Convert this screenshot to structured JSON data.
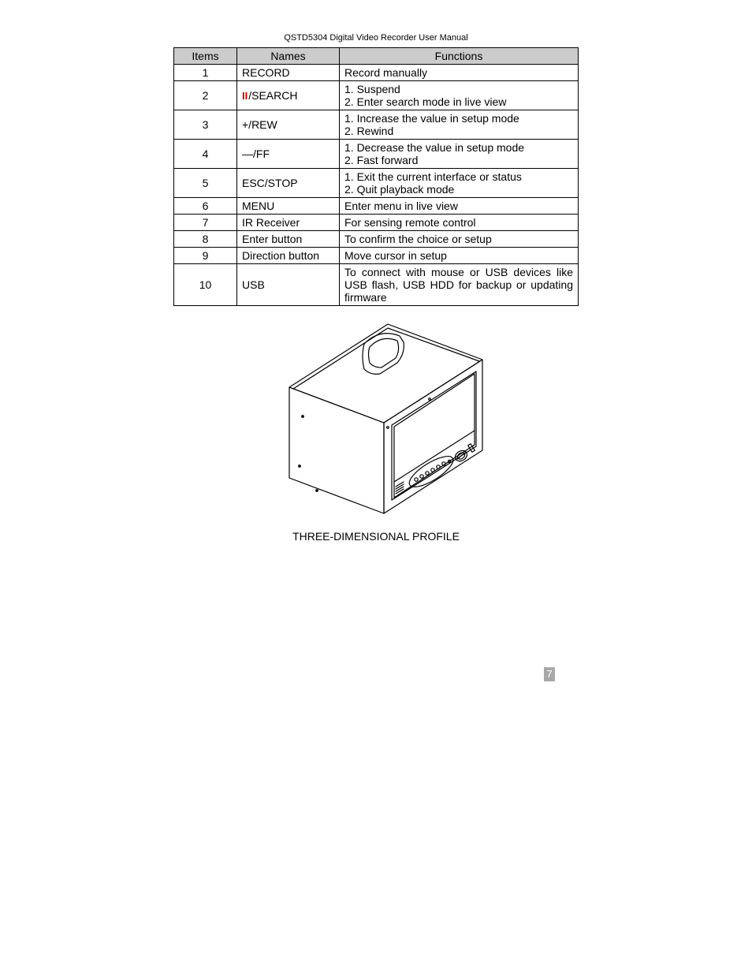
{
  "manual_title": "QSTD5304 Digital Video Recorder User Manual",
  "table": {
    "headers": {
      "items": "Items",
      "names": "Names",
      "functions": "Functions"
    },
    "rows": [
      {
        "item": "1",
        "name": "RECORD",
        "has_icon": false,
        "functions": [
          "Record manually"
        ]
      },
      {
        "item": "2",
        "name": "/SEARCH",
        "has_icon": true,
        "functions": [
          "1. Suspend",
          "2. Enter search mode in live view"
        ]
      },
      {
        "item": "3",
        "name": "+/REW",
        "has_icon": false,
        "functions": [
          "1. Increase the value in setup mode",
          "2. Rewind"
        ]
      },
      {
        "item": "4",
        "name": "—/FF",
        "has_icon": false,
        "functions": [
          "1. Decrease the value in setup mode",
          "2. Fast forward"
        ]
      },
      {
        "item": "5",
        "name": "ESC/STOP",
        "has_icon": false,
        "functions": [
          "1. Exit the current interface or status",
          "2. Quit playback mode"
        ]
      },
      {
        "item": "6",
        "name": "MENU",
        "has_icon": false,
        "functions": [
          "Enter menu in live view"
        ]
      },
      {
        "item": "7",
        "name": "IR Receiver",
        "has_icon": false,
        "functions": [
          "For sensing remote control"
        ]
      },
      {
        "item": "8",
        "name": "Enter button",
        "has_icon": false,
        "functions": [
          "To confirm the choice or setup"
        ]
      },
      {
        "item": "9",
        "name": "Direction button",
        "has_icon": false,
        "functions": [
          "Move cursor in setup"
        ]
      },
      {
        "item": "10",
        "name": "USB",
        "has_icon": false,
        "functions": [
          "To connect with mouse or USB devices like USB flash, USB HDD for backup or updating firmware"
        ],
        "justify": true
      }
    ]
  },
  "figure_caption": "THREE-DIMENSIONAL PROFILE",
  "page_number": "7",
  "colors": {
    "header_bg": "#cccccc",
    "border": "#000000",
    "pause_icon": "#cc0000",
    "page_num_bg": "#a8a8a8",
    "page_num_fg": "#ffffff",
    "background": "#ffffff",
    "text": "#000000"
  }
}
